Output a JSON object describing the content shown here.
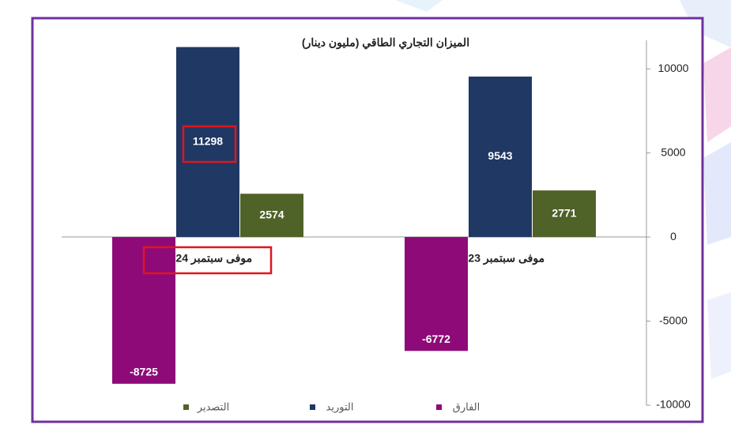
{
  "chart_data": {
    "type": "bar",
    "title": "الميزان التجاري الطاقي (مليون دينار)",
    "categories": [
      "موفى سبتمبر 2023",
      "موفى سبتمبر 2024"
    ],
    "series": [
      {
        "name": "التصدير",
        "color": "#4f6228",
        "values": [
          2771,
          2574
        ]
      },
      {
        "name": "التوريد",
        "color": "#1f3864",
        "values": [
          9543,
          11298
        ]
      },
      {
        "name": "الفارق",
        "color": "#8e0a78",
        "values": [
          -6772,
          -8725
        ]
      }
    ],
    "ylim": [
      -10000,
      11700
    ],
    "yticks": [
      -10000,
      -5000,
      0,
      5000,
      10000
    ],
    "grid": false
  }
}
